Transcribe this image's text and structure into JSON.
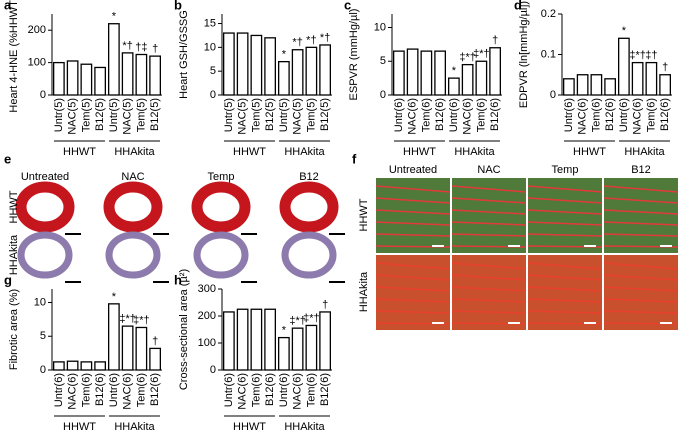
{
  "chart_data": [
    {
      "panel": "a",
      "type": "bar",
      "ylabel": "Heart 4-HNE (%HHWT)",
      "groups": [
        "HHWT",
        "HHAkita"
      ],
      "categories": [
        "Untr(5)",
        "NAC(5)",
        "Tem(5)",
        "B12(5)",
        "Untr(5)",
        "NAC(5)",
        "Tem(5)",
        "B12(5)"
      ],
      "values": [
        100,
        105,
        95,
        85,
        220,
        130,
        125,
        120
      ],
      "annotations": [
        null,
        null,
        null,
        null,
        "*",
        "*†",
        "†‡",
        "†"
      ],
      "ylim": [
        0,
        250
      ],
      "yticks": [
        0,
        100,
        200
      ]
    },
    {
      "panel": "b",
      "type": "bar",
      "ylabel": "Heart GSH/GSSG",
      "groups": [
        "HHWT",
        "HHAkita"
      ],
      "categories": [
        "Untr(5)",
        "NAC(5)",
        "Tem(5)",
        "B12(5)",
        "Untr(5)",
        "NAC(5)",
        "Tem(5)",
        "B12(5)"
      ],
      "values": [
        13,
        13,
        12.5,
        12,
        7,
        9.5,
        10,
        10.5
      ],
      "annotations": [
        null,
        null,
        null,
        null,
        "*",
        "*†",
        "*†",
        "*†"
      ],
      "ylim": [
        0,
        17
      ],
      "yticks": [
        0,
        5,
        10,
        15
      ]
    },
    {
      "panel": "c",
      "type": "bar",
      "ylabel": "ESPVR (mmHg/µl)",
      "groups": [
        "HHWT",
        "HHAkita"
      ],
      "categories": [
        "Untr(6)",
        "NAC(6)",
        "Tem(6)",
        "B12(6)",
        "Untr(6)",
        "NAC(6)",
        "Tem(6)",
        "B12(6)"
      ],
      "values": [
        6.5,
        6.8,
        6.5,
        6.5,
        2.5,
        4.5,
        5,
        7
      ],
      "annotations": [
        null,
        null,
        null,
        null,
        "*",
        "‡*†",
        "‡*†",
        "†"
      ],
      "ylim": [
        0,
        12
      ],
      "yticks": [
        0,
        5,
        10
      ]
    },
    {
      "panel": "d",
      "type": "bar",
      "ylabel": "EDPVR (ln[mmHg/µl])",
      "groups": [
        "HHWT",
        "HHAkita"
      ],
      "categories": [
        "Untr(6)",
        "NAC(6)",
        "Tem(6)",
        "B12(6)",
        "Untr(6)",
        "NAC(6)",
        "Tem(6)",
        "B12(6)"
      ],
      "values": [
        0.04,
        0.05,
        0.05,
        0.04,
        0.14,
        0.08,
        0.08,
        0.05
      ],
      "annotations": [
        null,
        null,
        null,
        null,
        "*",
        "‡*†",
        "‡†",
        "†"
      ],
      "ylim": [
        0,
        0.2
      ],
      "yticks": [
        0,
        0.1,
        0.2
      ]
    },
    {
      "panel": "g",
      "type": "bar",
      "ylabel": "Fibrotic area (%)",
      "groups": [
        "HHWT",
        "HHAkita"
      ],
      "categories": [
        "Untr(6)",
        "NAC(6)",
        "Tem(6)",
        "B12(6)",
        "Untr(6)",
        "NAC(6)",
        "Tem(6)",
        "B12(6)"
      ],
      "values": [
        1.2,
        1.3,
        1.2,
        1.2,
        9.8,
        6.5,
        6.3,
        3.2
      ],
      "annotations": [
        null,
        null,
        null,
        null,
        "*",
        "‡*†",
        "‡*†",
        "†"
      ],
      "ylim": [
        0,
        12
      ],
      "yticks": [
        0,
        5,
        10
      ]
    },
    {
      "panel": "h",
      "type": "bar",
      "ylabel": "Cross-sectional area (µ²)",
      "groups": [
        "HHWT",
        "HHAkita"
      ],
      "categories": [
        "Untr(6)",
        "NAC(6)",
        "Tem(6)",
        "B12(6)",
        "Untr(6)",
        "NAC(6)",
        "Tem(6)",
        "B12(6)"
      ],
      "values": [
        215,
        225,
        225,
        225,
        120,
        155,
        165,
        215
      ],
      "annotations": [
        null,
        null,
        null,
        null,
        "*",
        "‡*†",
        "‡*†",
        "†"
      ],
      "ylim": [
        0,
        300
      ],
      "yticks": [
        0,
        100,
        200,
        300
      ]
    }
  ],
  "image_panels": [
    {
      "panel": "e",
      "columns": [
        "Untreated",
        "NAC",
        "Temp",
        "B12"
      ],
      "rows": [
        "HHWT",
        "HHAkita"
      ]
    },
    {
      "panel": "f",
      "columns": [
        "Untreated",
        "NAC",
        "Temp",
        "B12"
      ],
      "rows": [
        "HHWT",
        "HHAkita"
      ]
    }
  ]
}
